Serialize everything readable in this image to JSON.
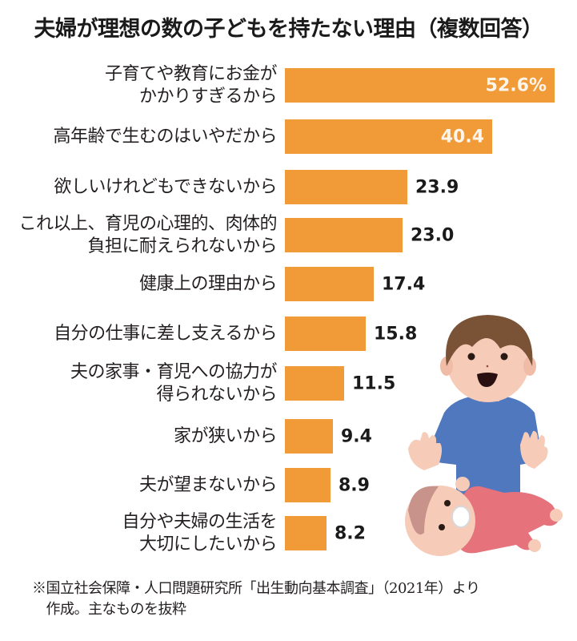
{
  "title": "夫婦が理想の数の子どもを持たない理由（複数回答）",
  "chart_data": {
    "type": "bar",
    "orientation": "horizontal",
    "title": "夫婦が理想の数の子どもを持たない理由（複数回答）",
    "xlabel": "",
    "ylabel": "",
    "unit": "%",
    "grid": false,
    "legend": null,
    "categories": [
      "子育てや教育にお金がかかりすぎるから",
      "高年齢で生むのはいやだから",
      "欲しいけれどもできないから",
      "これ以上、育児の心理的、肉体的負担に耐えられないから",
      "健康上の理由から",
      "自分の仕事に差し支えるから",
      "夫の家事・育児への協力が得られないから",
      "家が狭いから",
      "夫が望まないから",
      "自分や夫婦の生活を大切にしたいから"
    ],
    "values": [
      52.6,
      40.4,
      23.9,
      23.0,
      17.4,
      15.8,
      11.5,
      9.4,
      8.9,
      8.2
    ],
    "bar_color": "#f19a38"
  },
  "rows": [
    {
      "label": "子育てや教育にお金が\nかかりすぎるから",
      "value_text": "52.6%",
      "value": 52.6,
      "inside": true
    },
    {
      "label": "高年齢で生むのはいやだから",
      "value_text": "40.4",
      "value": 40.4,
      "inside": true
    },
    {
      "label": "欲しいけれどもできないから",
      "value_text": "23.9",
      "value": 23.9,
      "inside": false
    },
    {
      "label": "これ以上、育児の心理的、肉体的\n負担に耐えられないから",
      "value_text": "23.0",
      "value": 23.0,
      "inside": false
    },
    {
      "label": "健康上の理由から",
      "value_text": "17.4",
      "value": 17.4,
      "inside": false
    },
    {
      "label": "自分の仕事に差し支えるから",
      "value_text": "15.8",
      "value": 15.8,
      "inside": false
    },
    {
      "label": "夫の家事・育児への協力が\n得られないから",
      "value_text": "11.5",
      "value": 11.5,
      "inside": false
    },
    {
      "label": "家が狭いから",
      "value_text": "9.4",
      "value": 9.4,
      "inside": false
    },
    {
      "label": "夫が望まないから",
      "value_text": "8.9",
      "value": 8.9,
      "inside": false
    },
    {
      "label": "自分や夫婦の生活を\n大切にしたいから",
      "value_text": "8.2",
      "value": 8.2,
      "inside": false
    }
  ],
  "note": "※国立社会保障・人口問題研究所「出生動向基本調査」（2021年）より\n　作成。主なものを抜粋",
  "colors": {
    "bar": "#f19a38",
    "inside_value_text": "#fdf5ea",
    "text": "#231f20"
  },
  "illustration": "boy-and-baby-illustration"
}
